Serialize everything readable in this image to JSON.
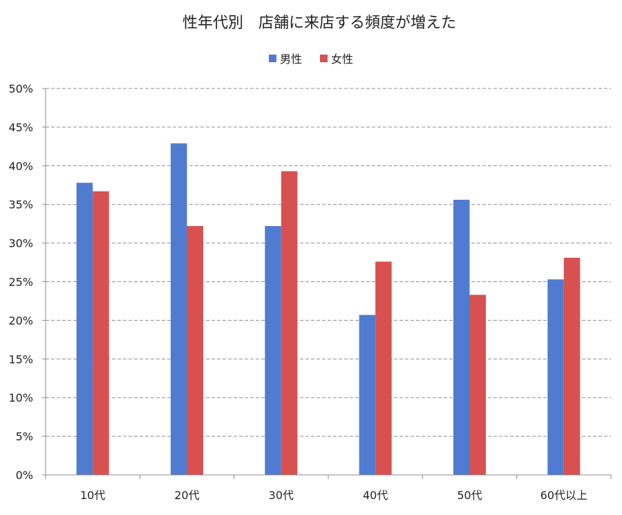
{
  "chart_data": {
    "type": "bar",
    "title": "性年代別　店舗に来店する頻度が増えた",
    "xlabel": "",
    "ylabel": "",
    "categories": [
      "10代",
      "20代",
      "30代",
      "40代",
      "50代",
      "60代以上"
    ],
    "series": [
      {
        "name": "男性",
        "color": "#4f7bd0",
        "values": [
          37.8,
          42.9,
          32.2,
          20.7,
          35.6,
          25.3
        ]
      },
      {
        "name": "女性",
        "color": "#d95050",
        "values": [
          36.7,
          32.2,
          39.3,
          27.6,
          23.3,
          28.1
        ]
      }
    ],
    "ylim": [
      0,
      50
    ],
    "yticks": [
      0,
      5,
      10,
      15,
      20,
      25,
      30,
      35,
      40,
      45,
      50
    ],
    "ytick_suffix": "%",
    "legend_position": "top-center",
    "grid": "horizontal-dashed"
  }
}
